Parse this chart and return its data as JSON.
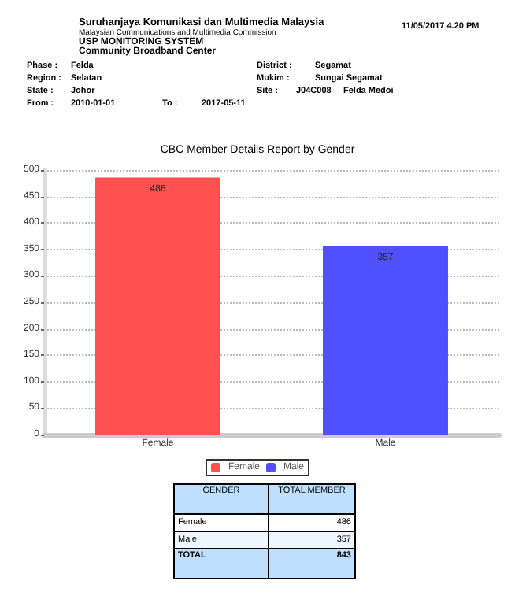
{
  "chart_data": {
    "type": "bar",
    "title": "CBC Member Details Report by Gender",
    "categories": [
      "Female",
      "Male"
    ],
    "series": [
      {
        "name": "Female",
        "color": "#ff5050",
        "values": [
          486,
          null
        ]
      },
      {
        "name": "Male",
        "color": "#5050ff",
        "values": [
          null,
          357
        ]
      }
    ],
    "ylim": [
      0,
      500
    ],
    "yticks": [
      0,
      50,
      100,
      150,
      200,
      250,
      300,
      350,
      400,
      450,
      500
    ],
    "grid": "y",
    "legend": "bottom",
    "data_labels": true,
    "annotations": [
      "Suruhanjaya Komunikasi dan Multimedia Malaysia",
      "Malaysian Communications and Multimedia Commission",
      "USP MONITORING SYSTEM",
      "Community Broadband Center",
      "11/05/2017 4.20 PM",
      "Phase :",
      "Felda",
      "District :",
      "Segamat",
      "Region :",
      "Selatan",
      "Mukim :",
      "Sungai Segamat",
      "State :",
      "Johor",
      "Site :",
      "J04C008",
      "Felda Medoi",
      "From :",
      "2010-01-01",
      "To :",
      "2017-05-11",
      "GENDER",
      "TOTAL MEMBER",
      "Female",
      "486",
      "Male",
      "357",
      "TOTAL",
      "843"
    ]
  }
}
